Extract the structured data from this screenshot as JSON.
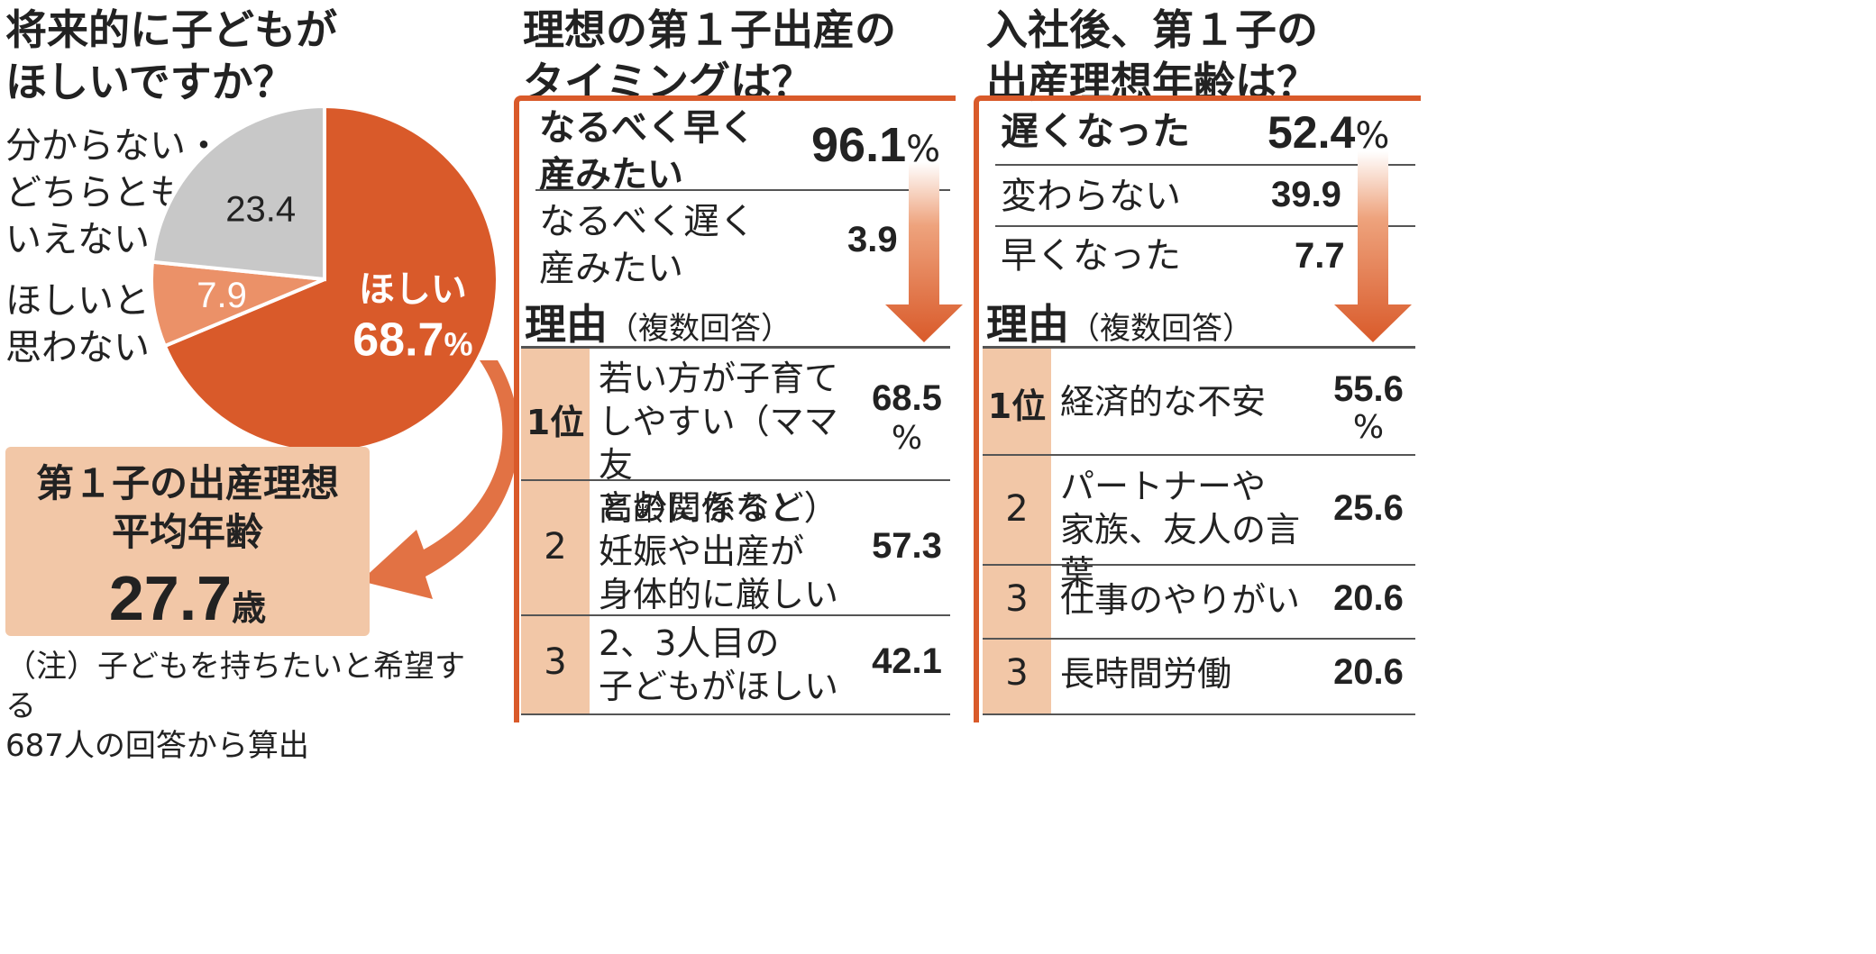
{
  "left": {
    "title": "将来的に子どもが\nほしいですか？",
    "pie_label_unsure": "分からない・\nどちらとも\nいえない",
    "pie_label_no": "ほしいと\n思わない",
    "box": {
      "heading": "第１子の出産理想\n平均年齢",
      "value": "27.7",
      "unit": "歳"
    },
    "note": "（注）子どもを持ちたいと希望する\n687人の回答から算出"
  },
  "middle": {
    "title": "理想の第１子出産の\nタイミングは？",
    "options": [
      {
        "label": "なるべく早く\n産みたい",
        "value": "96.1",
        "unit": "%"
      },
      {
        "label": "なるべく遅く\n産みたい",
        "value": "3.9"
      }
    ],
    "reason_heading": "理由",
    "reason_sub": "（複数回答）",
    "reasons": [
      {
        "rank": "1位",
        "text": "若い方が子育て\nしやすい（ママ友\nとの関係など）",
        "value": "68.5",
        "unit": "%"
      },
      {
        "rank": "2",
        "text": "高齢になると\n妊娠や出産が\n身体的に厳しい",
        "value": "57.3"
      },
      {
        "rank": "3",
        "text": "2、3人目の\n子どもがほしい",
        "value": "42.1"
      }
    ]
  },
  "right": {
    "title": "入社後、第１子の\n出産理想年齢は？",
    "options": [
      {
        "label": "遅くなった",
        "value": "52.4",
        "unit": "%"
      },
      {
        "label": "変わらない",
        "value": "39.9"
      },
      {
        "label": "早くなった",
        "value": "7.7"
      }
    ],
    "reason_heading": "理由",
    "reason_sub": "（複数回答）",
    "reasons": [
      {
        "rank": "1位",
        "text": "経済的な不安",
        "value": "55.6",
        "unit": "%"
      },
      {
        "rank": "2",
        "text": "パートナーや\n家族、友人の言葉",
        "value": "25.6"
      },
      {
        "rank": "3",
        "text": "仕事のやりがい",
        "value": "20.6"
      },
      {
        "rank": "3",
        "text": "長時間労働",
        "value": "20.6"
      }
    ]
  },
  "chart_data": {
    "type": "pie",
    "categories": [
      "ほしい",
      "ほしいと思わない",
      "分からない・どちらともいえない"
    ],
    "values": [
      68.7,
      7.9,
      23.4
    ],
    "labels": [
      "ほしい",
      "",
      ""
    ],
    "value_labels": [
      "68.7",
      "7.9",
      "23.4"
    ],
    "unit": "%",
    "colors": [
      "#d95a2a",
      "#eb9168",
      "#c8c8c8"
    ]
  }
}
